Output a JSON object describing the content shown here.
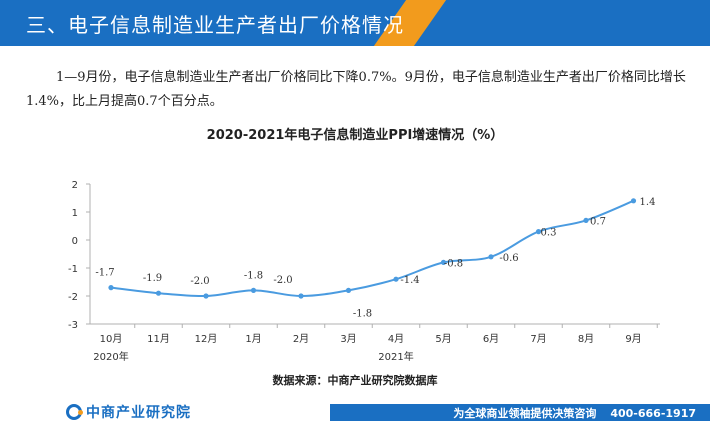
{
  "header": {
    "title": "三、电子信息制造业生产者出厂价格情况"
  },
  "paragraph": "1—9月份，电子信息制造业生产者出厂价格同比下降0.7%。9月份，电子信息制造业生产者出厂价格同比增长1.4%，比上月提高0.7个百分点。",
  "chart_data": {
    "type": "line",
    "title": "2020-2021年电子信息制造业PPI增速情况（%）",
    "categories": [
      "10月",
      "11月",
      "12月",
      "1月",
      "2月",
      "3月",
      "4月",
      "5月",
      "6月",
      "7月",
      "8月",
      "9月"
    ],
    "year_labels": [
      {
        "label": "2020年",
        "at": 0
      },
      {
        "label": "2021年",
        "at": 6
      }
    ],
    "series": [
      {
        "values": [
          -1.7,
          -1.9,
          -2.0,
          -1.8,
          -2.0,
          -1.8,
          -1.4,
          -0.8,
          -0.6,
          0.3,
          0.7,
          1.4
        ]
      }
    ],
    "data_labels": [
      "-1.7",
      "-1.9",
      "-2.0",
      "-1.8",
      "-2.0",
      "-1.8",
      "-1.4",
      "-0.8",
      "-0.6",
      "0.3",
      "0.7",
      "1.4"
    ],
    "yticks": [
      2,
      1,
      0,
      -1,
      -2,
      -3
    ],
    "ylim": [
      -3,
      2
    ],
    "grid": false,
    "line_color": "#4a9be0"
  },
  "source": "数据来源：中商产业研究院数据库",
  "footer": {
    "logo_text": "中商产业研究院",
    "slogan": "为全球商业领袖提供决策咨询",
    "phone": "400-666-1917"
  }
}
